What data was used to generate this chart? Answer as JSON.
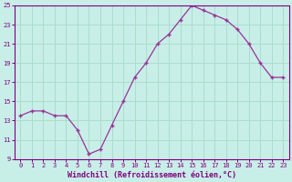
{
  "x": [
    0,
    1,
    2,
    3,
    4,
    5,
    6,
    7,
    8,
    9,
    10,
    11,
    12,
    13,
    14,
    15,
    16,
    17,
    18,
    19,
    20,
    21,
    22,
    23
  ],
  "y": [
    13.5,
    14.0,
    14.0,
    13.5,
    13.5,
    12.0,
    9.5,
    10.0,
    12.5,
    15.0,
    17.5,
    19.0,
    21.0,
    22.0,
    23.5,
    25.0,
    24.5,
    24.0,
    23.5,
    22.5,
    21.0,
    19.0,
    17.5,
    17.5
  ],
  "line_color": "#993399",
  "marker": "+",
  "xlabel": "Windchill (Refroidissement éolien,°C)",
  "ylim": [
    9,
    25
  ],
  "xlim_min": -0.5,
  "xlim_max": 23.5,
  "yticks": [
    9,
    11,
    13,
    15,
    17,
    19,
    21,
    23,
    25
  ],
  "xticks": [
    0,
    1,
    2,
    3,
    4,
    5,
    6,
    7,
    8,
    9,
    10,
    11,
    12,
    13,
    14,
    15,
    16,
    17,
    18,
    19,
    20,
    21,
    22,
    23
  ],
  "bg_color": "#c8eee8",
  "grid_color": "#aaddcc",
  "axis_color": "#800080"
}
